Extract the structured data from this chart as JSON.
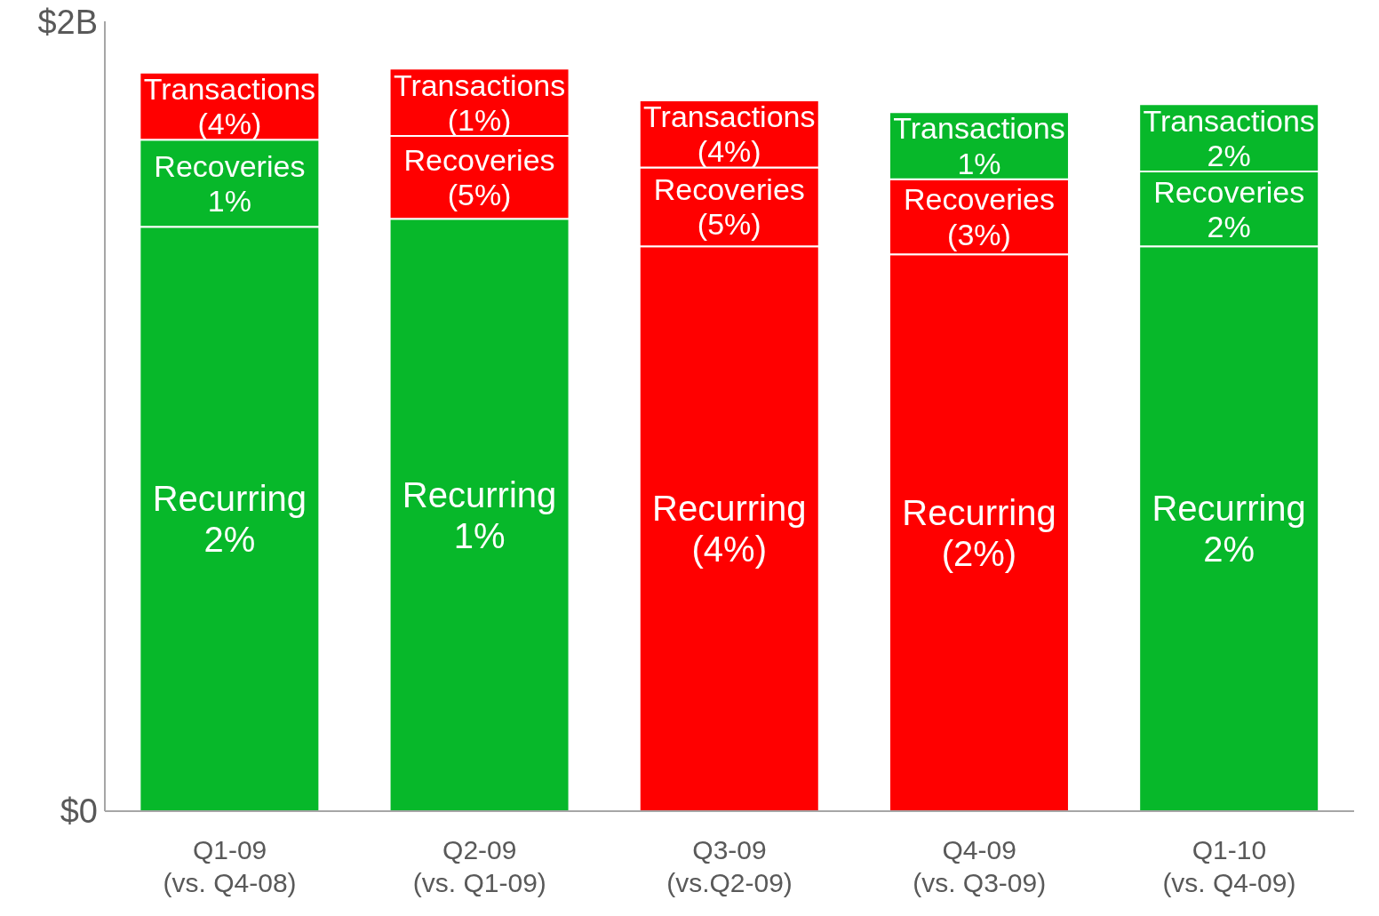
{
  "chart_data": {
    "type": "bar",
    "stacked": true,
    "categories": [
      "Q1-09\n(vs. Q4-08)",
      "Q2-09\n(vs. Q1-09)",
      "Q3-09\n(vs.Q2-09)",
      "Q4-09\n(vs. Q3-09)",
      "Q1-10\n(vs. Q4-09)"
    ],
    "series": [
      {
        "name": "Recurring",
        "colors": [
          "#07b82a",
          "#07b82a",
          "#ff0000",
          "#ff0000",
          "#07b82a"
        ],
        "values": [
          1.48,
          1.5,
          1.43,
          1.41,
          1.43
        ]
      },
      {
        "name": "Recoveries",
        "colors": [
          "#07b82a",
          "#ff0000",
          "#ff0000",
          "#ff0000",
          "#07b82a"
        ],
        "values": [
          0.22,
          0.21,
          0.2,
          0.19,
          0.19
        ]
      },
      {
        "name": "Transactions",
        "colors": [
          "#ff0000",
          "#ff0000",
          "#ff0000",
          "#07b82a",
          "#07b82a"
        ],
        "values": [
          0.17,
          0.17,
          0.17,
          0.17,
          0.17
        ]
      }
    ],
    "annotations": [
      "2%",
      "1%",
      "(4%)",
      "(2%)",
      "2%",
      "1%",
      "(5%)",
      "(5%)",
      "(3%)",
      "2%",
      "(4%)",
      "(1%)",
      "(4%)",
      "1%",
      "2%"
    ],
    "ylim": [
      0,
      2
    ],
    "yticks": [
      {
        "value": 0,
        "label": "$0"
      },
      {
        "value": 2,
        "label": "$2B"
      }
    ],
    "grid": false,
    "legend": false
  }
}
